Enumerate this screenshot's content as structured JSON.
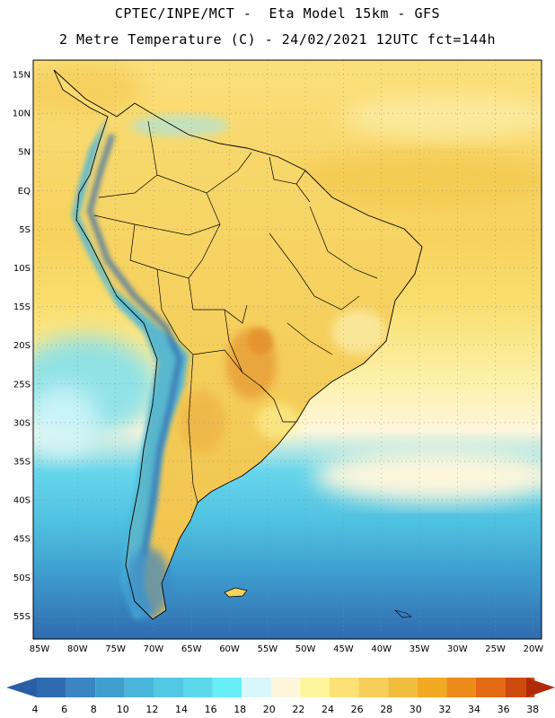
{
  "header": {
    "line1": "CPTEC/INPE/MCT -  Eta Model 15km - GFS",
    "line2": "2 Metre Temperature (C) - 24/02/2021 12UTC fct=144h"
  },
  "map": {
    "lat_labels": [
      "15N",
      "10N",
      "5N",
      "EQ",
      "5S",
      "10S",
      "15S",
      "20S",
      "25S",
      "30S",
      "35S",
      "40S",
      "45S",
      "50S",
      "55S"
    ],
    "lon_labels": [
      "85W",
      "80W",
      "75W",
      "70W",
      "65W",
      "60W",
      "55W",
      "50W",
      "45W",
      "40W",
      "35W",
      "30W",
      "25W",
      "20W"
    ]
  },
  "colorbar": {
    "ticks": [
      "4",
      "6",
      "8",
      "10",
      "12",
      "14",
      "16",
      "18",
      "20",
      "22",
      "24",
      "26",
      "28",
      "30",
      "32",
      "34",
      "36",
      "38"
    ],
    "colors": [
      "#2f6bb0",
      "#3a86c4",
      "#3fa0d0",
      "#4ab6dc",
      "#52c8e2",
      "#5ad8ea",
      "#67eef6",
      "#d6f7fb",
      "#fdf6dc",
      "#fef59a",
      "#fbe176",
      "#f6ce58",
      "#f0bd3c",
      "#f2a922",
      "#ee8a1a",
      "#e36a12",
      "#cf4a0e",
      "#b8330b"
    ],
    "low_color": "#2a5fa8",
    "high_color": "#b02a08"
  }
}
